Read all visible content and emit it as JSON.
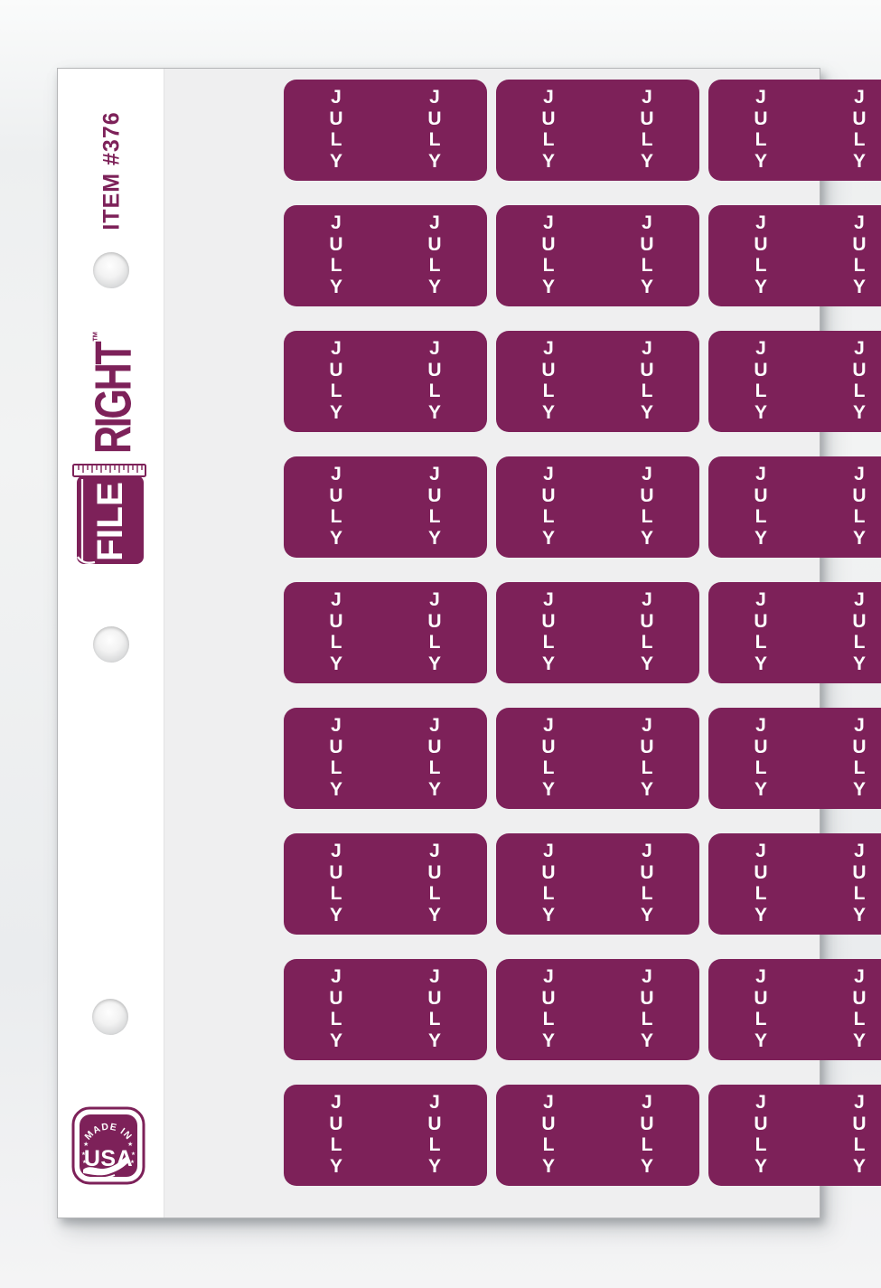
{
  "sheet": {
    "item_number": "ITEM #376",
    "hole_count": 3
  },
  "brand": {
    "file": "FILE",
    "right": "RIGHT",
    "trademark": "™"
  },
  "badge": {
    "arc_text": "MADE IN",
    "main_text": "USA",
    "star_glyph": "★"
  },
  "labels": {
    "text": "JULY",
    "letters": [
      "J",
      "U",
      "L",
      "Y"
    ],
    "rows": 9,
    "columns": 3,
    "texts_per_label": 2,
    "total_labels": 27
  },
  "colors": {
    "brand_purple": "#7D2159",
    "label_purple": "#7D2159",
    "label_text_white": "#FFFFFF",
    "sheet_gray": "#EFEFF0",
    "strip_white": "#FFFFFF"
  }
}
